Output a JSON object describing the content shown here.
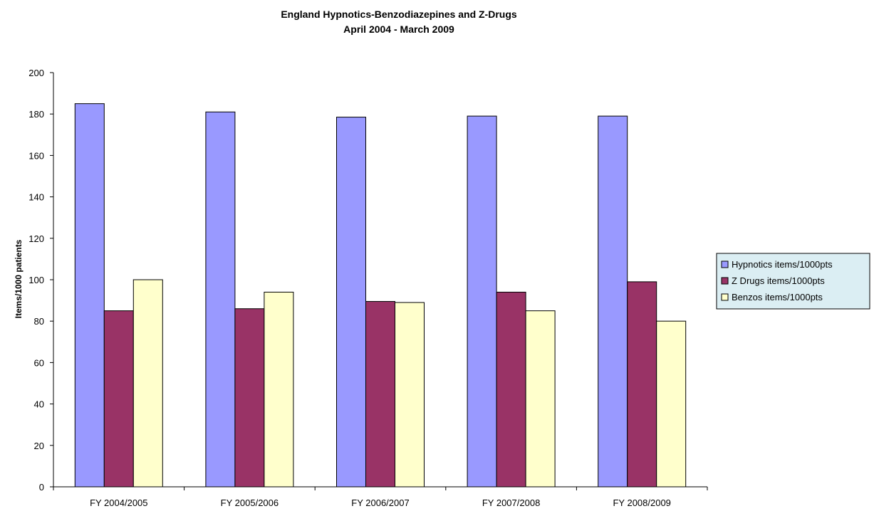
{
  "chart_data": {
    "type": "bar",
    "title": "England Hypnotics-Benzodiazepines  and Z-Drugs",
    "subtitle": "April 2004 - March 2009",
    "xlabel": "",
    "ylabel": "Items/1000 patients",
    "ylim": [
      0,
      200
    ],
    "yticks": [
      0,
      20,
      40,
      60,
      80,
      100,
      120,
      140,
      160,
      180,
      200
    ],
    "grid": false,
    "legend_position": "right",
    "categories": [
      "FY 2004/2005",
      "FY 2005/2006",
      "FY 2006/2007",
      "FY 2007/2008",
      "FY 2008/2009"
    ],
    "series": [
      {
        "name": "Hypnotics items/1000pts",
        "color": "#9999ff",
        "values": [
          185,
          181,
          178.5,
          179,
          179
        ]
      },
      {
        "name": "Z Drugs items/1000pts",
        "color": "#993366",
        "values": [
          85,
          86,
          89.5,
          94,
          99
        ]
      },
      {
        "name": "Benzos items/1000pts",
        "color": "#ffffcc",
        "values": [
          100,
          94,
          89,
          85,
          80
        ]
      }
    ],
    "legend_background": "#dbeef3"
  }
}
